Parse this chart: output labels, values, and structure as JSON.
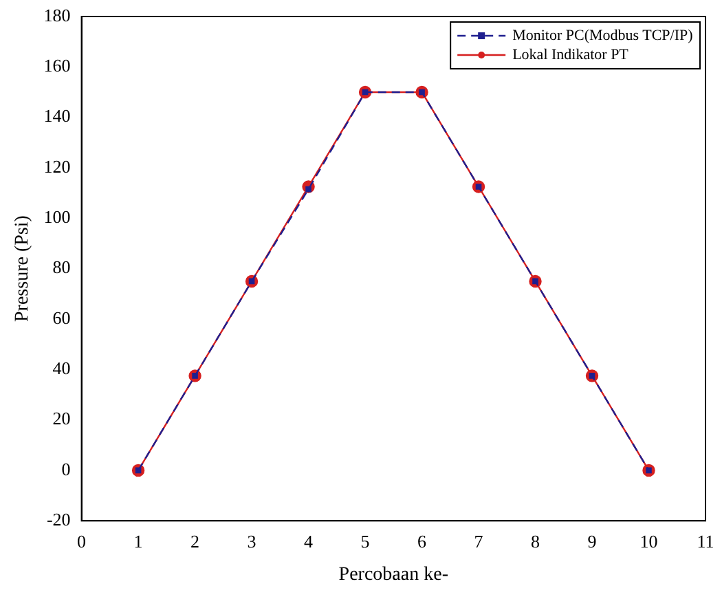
{
  "chart_data": {
    "type": "line",
    "xlabel": "Percobaan ke-",
    "ylabel": "Pressure (Psi)",
    "x": [
      1,
      2,
      3,
      4,
      5,
      6,
      7,
      8,
      9,
      10
    ],
    "series": [
      {
        "name": "Monitor PC(Modbus TCP/IP)",
        "color": "#1f1f8f",
        "values": [
          0,
          37.5,
          75,
          111.5,
          150,
          150,
          112.5,
          75,
          37.5,
          0
        ],
        "marker": "square",
        "line_style": "dashed"
      },
      {
        "name": "Lokal Indikator PT",
        "color": "#d62020",
        "values": [
          0,
          37.5,
          75,
          112.5,
          150,
          150,
          112.5,
          75,
          37.5,
          0
        ],
        "marker": "circle",
        "line_style": "solid"
      }
    ],
    "xlim": [
      0,
      11
    ],
    "xticks": [
      0,
      1,
      2,
      3,
      4,
      5,
      6,
      7,
      8,
      9,
      10,
      11
    ],
    "ylim": [
      -20,
      180
    ],
    "yticks": [
      -20,
      0,
      20,
      40,
      60,
      80,
      100,
      120,
      140,
      160,
      180
    ],
    "grid": false,
    "legend": "top right"
  }
}
